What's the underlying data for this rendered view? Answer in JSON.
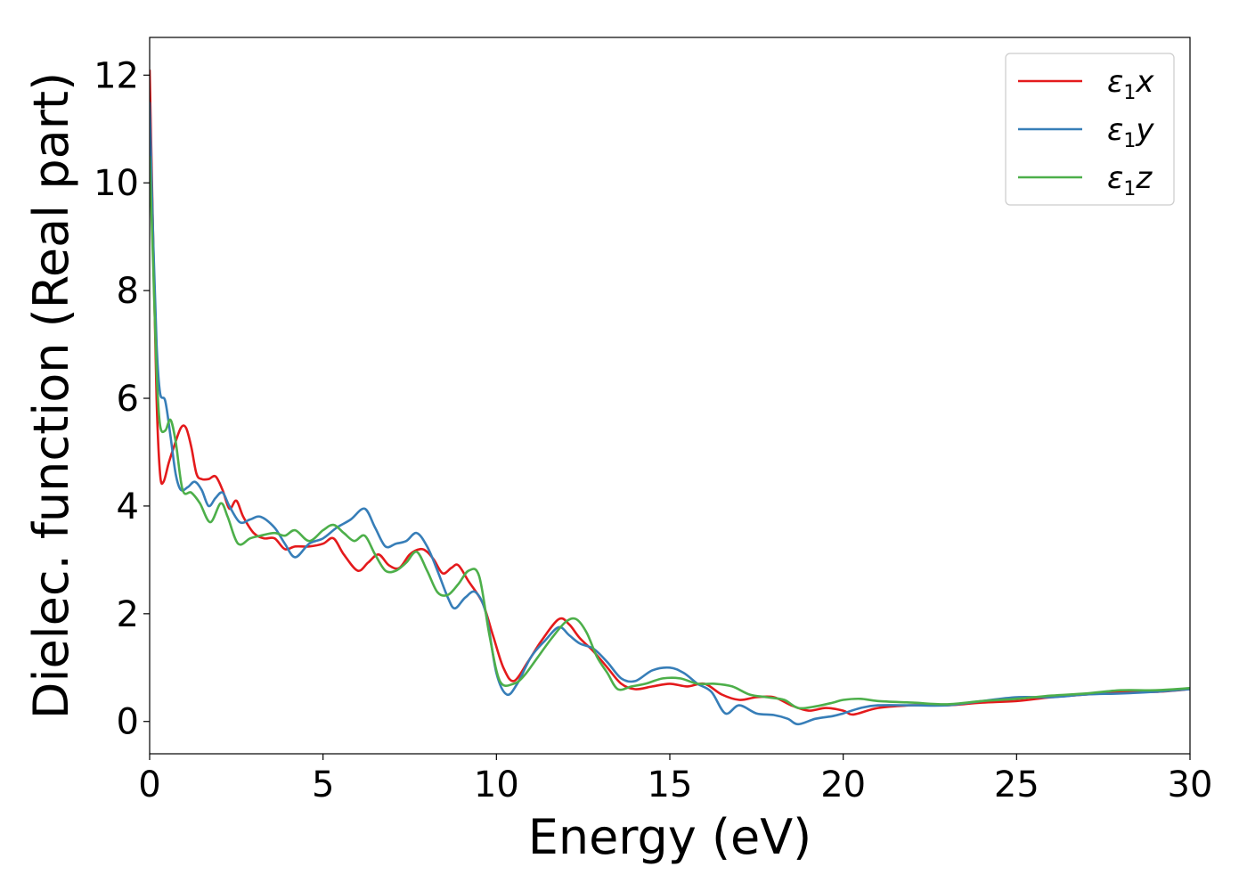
{
  "chart_data": {
    "type": "line",
    "xlabel": "Energy (eV)",
    "ylabel": "Dielec. function (Real part)",
    "xlim": [
      0,
      30
    ],
    "ylim": [
      -0.6,
      12.7
    ],
    "x_ticks": [
      0,
      5,
      10,
      15,
      20,
      25,
      30
    ],
    "y_ticks": [
      0,
      2,
      4,
      6,
      8,
      10,
      12
    ],
    "x_tick_labels": [
      "0",
      "5",
      "10",
      "15",
      "20",
      "25",
      "30"
    ],
    "y_tick_labels": [
      "0",
      "2",
      "4",
      "6",
      "8",
      "10",
      "12"
    ],
    "grid": false,
    "legend_position": "top-right",
    "series": [
      {
        "name": "ε1x",
        "legend_main": "ε",
        "legend_sub": "1",
        "legend_var": "x",
        "color": "#e41a1c",
        "points": [
          [
            0,
            12.1
          ],
          [
            0.1,
            9.0
          ],
          [
            0.2,
            6.0
          ],
          [
            0.3,
            4.6
          ],
          [
            0.4,
            4.45
          ],
          [
            0.55,
            4.8
          ],
          [
            0.7,
            5.1
          ],
          [
            0.9,
            5.45
          ],
          [
            1.05,
            5.45
          ],
          [
            1.2,
            5.1
          ],
          [
            1.35,
            4.6
          ],
          [
            1.5,
            4.5
          ],
          [
            1.7,
            4.5
          ],
          [
            1.9,
            4.55
          ],
          [
            2.1,
            4.3
          ],
          [
            2.3,
            3.95
          ],
          [
            2.5,
            4.1
          ],
          [
            2.7,
            3.8
          ],
          [
            3.0,
            3.5
          ],
          [
            3.3,
            3.4
          ],
          [
            3.6,
            3.4
          ],
          [
            3.9,
            3.2
          ],
          [
            4.2,
            3.25
          ],
          [
            4.6,
            3.25
          ],
          [
            5.0,
            3.3
          ],
          [
            5.3,
            3.4
          ],
          [
            5.6,
            3.1
          ],
          [
            6.0,
            2.8
          ],
          [
            6.3,
            2.95
          ],
          [
            6.6,
            3.1
          ],
          [
            6.9,
            2.9
          ],
          [
            7.2,
            2.85
          ],
          [
            7.5,
            3.1
          ],
          [
            7.8,
            3.2
          ],
          [
            8.0,
            3.15
          ],
          [
            8.2,
            3.0
          ],
          [
            8.45,
            2.75
          ],
          [
            8.7,
            2.85
          ],
          [
            8.9,
            2.9
          ],
          [
            9.2,
            2.6
          ],
          [
            9.6,
            2.2
          ],
          [
            9.9,
            1.6
          ],
          [
            10.2,
            1.0
          ],
          [
            10.5,
            0.75
          ],
          [
            10.9,
            1.1
          ],
          [
            11.3,
            1.5
          ],
          [
            11.8,
            1.9
          ],
          [
            12.1,
            1.8
          ],
          [
            12.4,
            1.55
          ],
          [
            12.8,
            1.3
          ],
          [
            13.2,
            1.0
          ],
          [
            13.6,
            0.7
          ],
          [
            14.0,
            0.6
          ],
          [
            14.5,
            0.65
          ],
          [
            15.0,
            0.7
          ],
          [
            15.5,
            0.65
          ],
          [
            16.0,
            0.7
          ],
          [
            16.5,
            0.5
          ],
          [
            17.0,
            0.4
          ],
          [
            17.5,
            0.45
          ],
          [
            18.0,
            0.45
          ],
          [
            18.5,
            0.3
          ],
          [
            19.0,
            0.2
          ],
          [
            19.5,
            0.25
          ],
          [
            20.0,
            0.2
          ],
          [
            20.3,
            0.13
          ],
          [
            21.0,
            0.25
          ],
          [
            22.0,
            0.3
          ],
          [
            23.0,
            0.3
          ],
          [
            24.0,
            0.35
          ],
          [
            25.0,
            0.38
          ],
          [
            26.0,
            0.45
          ],
          [
            27.0,
            0.5
          ],
          [
            28.0,
            0.55
          ],
          [
            29.0,
            0.55
          ],
          [
            30.0,
            0.6
          ]
        ]
      },
      {
        "name": "ε1y",
        "legend_main": "ε",
        "legend_sub": "1",
        "legend_var": "y",
        "color": "#377eb8",
        "points": [
          [
            0,
            11.5
          ],
          [
            0.1,
            9.0
          ],
          [
            0.2,
            7.0
          ],
          [
            0.3,
            6.1
          ],
          [
            0.45,
            5.95
          ],
          [
            0.6,
            5.3
          ],
          [
            0.75,
            4.6
          ],
          [
            0.9,
            4.3
          ],
          [
            1.1,
            4.35
          ],
          [
            1.3,
            4.45
          ],
          [
            1.5,
            4.3
          ],
          [
            1.7,
            4.0
          ],
          [
            1.9,
            4.15
          ],
          [
            2.1,
            4.25
          ],
          [
            2.3,
            4.0
          ],
          [
            2.6,
            3.7
          ],
          [
            2.9,
            3.75
          ],
          [
            3.2,
            3.8
          ],
          [
            3.6,
            3.6
          ],
          [
            3.9,
            3.3
          ],
          [
            4.2,
            3.05
          ],
          [
            4.6,
            3.3
          ],
          [
            5.0,
            3.4
          ],
          [
            5.4,
            3.6
          ],
          [
            5.8,
            3.75
          ],
          [
            6.2,
            3.95
          ],
          [
            6.5,
            3.6
          ],
          [
            6.8,
            3.25
          ],
          [
            7.1,
            3.3
          ],
          [
            7.4,
            3.35
          ],
          [
            7.7,
            3.5
          ],
          [
            8.0,
            3.25
          ],
          [
            8.3,
            2.8
          ],
          [
            8.6,
            2.3
          ],
          [
            8.8,
            2.1
          ],
          [
            9.1,
            2.3
          ],
          [
            9.4,
            2.4
          ],
          [
            9.7,
            2.0
          ],
          [
            10.0,
            0.9
          ],
          [
            10.3,
            0.5
          ],
          [
            10.6,
            0.7
          ],
          [
            11.0,
            1.2
          ],
          [
            11.4,
            1.5
          ],
          [
            11.8,
            1.75
          ],
          [
            12.1,
            1.6
          ],
          [
            12.4,
            1.45
          ],
          [
            12.8,
            1.35
          ],
          [
            13.2,
            1.1
          ],
          [
            13.6,
            0.8
          ],
          [
            14.0,
            0.75
          ],
          [
            14.5,
            0.95
          ],
          [
            15.0,
            1.0
          ],
          [
            15.4,
            0.9
          ],
          [
            15.8,
            0.7
          ],
          [
            16.2,
            0.55
          ],
          [
            16.6,
            0.15
          ],
          [
            17.0,
            0.3
          ],
          [
            17.5,
            0.15
          ],
          [
            18.0,
            0.12
          ],
          [
            18.4,
            0.05
          ],
          [
            18.7,
            -0.05
          ],
          [
            19.2,
            0.05
          ],
          [
            19.7,
            0.1
          ],
          [
            20.0,
            0.15
          ],
          [
            20.5,
            0.25
          ],
          [
            21.0,
            0.3
          ],
          [
            22.0,
            0.3
          ],
          [
            23.0,
            0.3
          ],
          [
            24.0,
            0.38
          ],
          [
            25.0,
            0.45
          ],
          [
            26.0,
            0.45
          ],
          [
            27.0,
            0.5
          ],
          [
            28.0,
            0.52
          ],
          [
            29.0,
            0.55
          ],
          [
            30.0,
            0.6
          ]
        ]
      },
      {
        "name": "ε1z",
        "legend_main": "ε",
        "legend_sub": "1",
        "legend_var": "z",
        "color": "#4daf4a",
        "points": [
          [
            0,
            10.5
          ],
          [
            0.1,
            8.5
          ],
          [
            0.2,
            6.5
          ],
          [
            0.3,
            5.5
          ],
          [
            0.45,
            5.4
          ],
          [
            0.6,
            5.6
          ],
          [
            0.75,
            5.2
          ],
          [
            0.95,
            4.3
          ],
          [
            1.2,
            4.25
          ],
          [
            1.45,
            4.05
          ],
          [
            1.75,
            3.7
          ],
          [
            2.05,
            4.05
          ],
          [
            2.25,
            3.8
          ],
          [
            2.55,
            3.3
          ],
          [
            2.9,
            3.4
          ],
          [
            3.2,
            3.45
          ],
          [
            3.6,
            3.5
          ],
          [
            3.9,
            3.45
          ],
          [
            4.2,
            3.55
          ],
          [
            4.6,
            3.35
          ],
          [
            5.0,
            3.55
          ],
          [
            5.3,
            3.65
          ],
          [
            5.6,
            3.5
          ],
          [
            5.9,
            3.35
          ],
          [
            6.2,
            3.45
          ],
          [
            6.5,
            3.1
          ],
          [
            6.8,
            2.8
          ],
          [
            7.1,
            2.8
          ],
          [
            7.4,
            2.95
          ],
          [
            7.7,
            3.15
          ],
          [
            8.0,
            2.8
          ],
          [
            8.3,
            2.4
          ],
          [
            8.6,
            2.35
          ],
          [
            8.9,
            2.55
          ],
          [
            9.2,
            2.8
          ],
          [
            9.5,
            2.7
          ],
          [
            9.8,
            1.6
          ],
          [
            10.1,
            0.75
          ],
          [
            10.5,
            0.7
          ],
          [
            10.8,
            0.85
          ],
          [
            11.2,
            1.2
          ],
          [
            11.6,
            1.55
          ],
          [
            12.0,
            1.85
          ],
          [
            12.3,
            1.9
          ],
          [
            12.6,
            1.65
          ],
          [
            12.9,
            1.2
          ],
          [
            13.2,
            0.9
          ],
          [
            13.5,
            0.6
          ],
          [
            13.9,
            0.65
          ],
          [
            14.3,
            0.7
          ],
          [
            14.8,
            0.8
          ],
          [
            15.3,
            0.8
          ],
          [
            15.8,
            0.7
          ],
          [
            16.3,
            0.7
          ],
          [
            16.8,
            0.65
          ],
          [
            17.3,
            0.5
          ],
          [
            17.8,
            0.45
          ],
          [
            18.3,
            0.4
          ],
          [
            18.7,
            0.25
          ],
          [
            19.2,
            0.28
          ],
          [
            19.7,
            0.35
          ],
          [
            20.0,
            0.4
          ],
          [
            20.5,
            0.42
          ],
          [
            21.0,
            0.38
          ],
          [
            22.0,
            0.35
          ],
          [
            23.0,
            0.32
          ],
          [
            24.0,
            0.38
          ],
          [
            25.0,
            0.42
          ],
          [
            26.0,
            0.48
          ],
          [
            27.0,
            0.52
          ],
          [
            28.0,
            0.58
          ],
          [
            29.0,
            0.58
          ],
          [
            30.0,
            0.62
          ]
        ]
      }
    ]
  }
}
